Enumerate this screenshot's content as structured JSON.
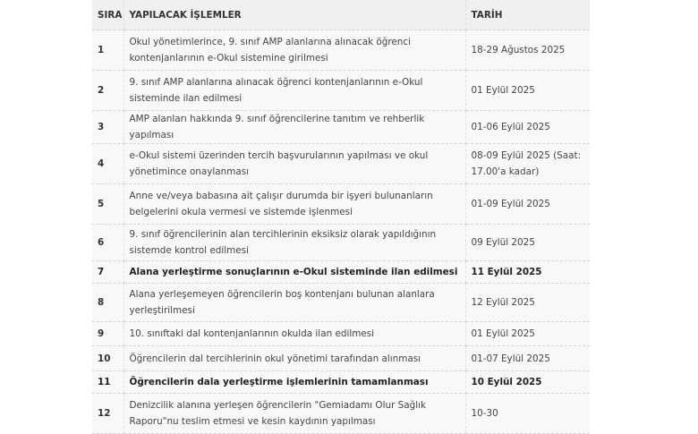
{
  "headers": {
    "no": "SIRA",
    "task": "YAPILACAK İŞLEMLER",
    "date": "TARİH"
  },
  "rows": [
    {
      "no": "1",
      "task": "Okul yönetimlerince, 9. sınıf AMP alanlarına alınacak öğrenci kontenjanlarının e-Okul sistemine girilmesi",
      "date": "18-29 Ağustos 2025",
      "bold": false
    },
    {
      "no": "2",
      "task": "9. sınıf AMP alanlarına alınacak öğrenci kontenjanlarının e-Okul sisteminde ilan edilmesi",
      "date": "01 Eylül 2025",
      "bold": false
    },
    {
      "no": "3",
      "task": "AMP alanları hakkında 9. sınıf öğrencilerine tanıtım ve rehberlik yapılması",
      "date": "01-06 Eylül 2025",
      "bold": false
    },
    {
      "no": "4",
      "task": "e-Okul sistemi üzerinden tercih başvurularının yapılması ve okul yönetimince onaylanması",
      "date": "08-09 Eylül 2025 (Saat: 17.00'a kadar)",
      "bold": false
    },
    {
      "no": "5",
      "task": "Anne ve/veya babasına ait çalışır durumda bir işyeri bulunanların belgelerini okula vermesi ve sistemde işlenmesi",
      "date": "01-09 Eylül 2025",
      "bold": false
    },
    {
      "no": "6",
      "task": "9. sınıf öğrencilerinin alan tercihlerinin eksiksiz olarak yapıldığının sistemde kontrol edilmesi",
      "date": "09 Eylül 2025",
      "bold": false
    },
    {
      "no": "7",
      "task": "Alana yerleştirme sonuçlarının e-Okul sisteminde ilan edilmesi",
      "date": "11 Eylül 2025",
      "bold": true
    },
    {
      "no": "8",
      "task": "Alana yerleşemeyen öğrencilerin boş kontenjanı bulunan alanlara yerleştirilmesi",
      "date": "12 Eylül 2025",
      "bold": false
    },
    {
      "no": "9",
      "task": "10. sınıftaki dal kontenjanlarının okulda ilan edilmesi",
      "date": "01 Eylül 2025",
      "bold": false
    },
    {
      "no": "10",
      "task": "Öğrencilerin dal tercihlerinin okul yönetimi tarafından alınması",
      "date": "01-07 Eylül 2025",
      "bold": false
    },
    {
      "no": "11",
      "task": "Öğrencilerin dala yerleştirme işlemlerinin tamamlanması",
      "date": "10 Eylül 2025",
      "bold": true
    },
    {
      "no": "12",
      "task": "Denizcilik alanına yerleşen öğrencilerin \"Gemiadamı Olur Sağlık Raporu\"nu teslim etmesi ve kesin kaydının yapılması",
      "date": "10-30",
      "bold": false
    }
  ]
}
